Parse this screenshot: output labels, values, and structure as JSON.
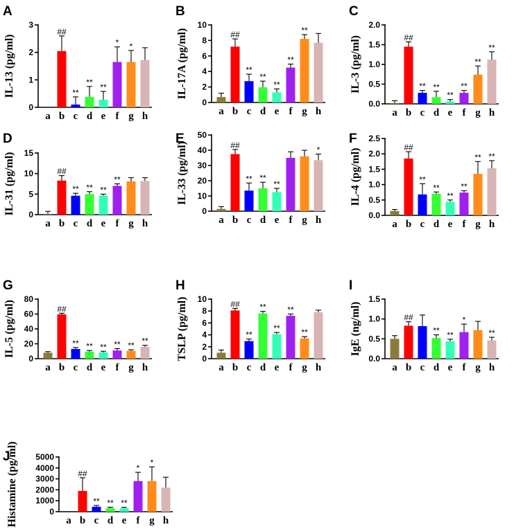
{
  "figure_description": "",
  "categories": [
    "a",
    "b",
    "c",
    "d",
    "e",
    "f",
    "g",
    "h"
  ],
  "colors": [
    "#8B7B3A",
    "#FF0000",
    "#0000FF",
    "#33FF33",
    "#33FFB8",
    "#A020F0",
    "#FF8C1A",
    "#D8B4B4"
  ],
  "chart_data": [
    {
      "id": "A",
      "panel": "A",
      "type": "bar",
      "ylabel": "IL-13 (pg/ml)",
      "ylim": [
        0,
        3
      ],
      "yticks": [
        "0",
        "1",
        "2",
        "3"
      ],
      "tickvals": [
        0,
        1,
        2,
        3
      ],
      "categories": [
        "a",
        "b",
        "c",
        "d",
        "e",
        "f",
        "g",
        "h"
      ],
      "values": [
        0,
        2.05,
        0.1,
        0.38,
        0.28,
        1.65,
        1.65,
        1.72
      ],
      "errors": [
        0,
        0.55,
        0.28,
        0.38,
        0.3,
        0.55,
        0.42,
        0.45
      ],
      "annotations": [
        "",
        "##",
        "**",
        "**",
        "**",
        "*",
        "*",
        ""
      ]
    },
    {
      "id": "B",
      "panel": "B",
      "type": "bar",
      "ylabel": "IL-17A (pg/ml)",
      "ylim": [
        0,
        10
      ],
      "yticks": [
        "0",
        "2",
        "4",
        "6",
        "8",
        "10"
      ],
      "tickvals": [
        0,
        2,
        4,
        6,
        8,
        10
      ],
      "categories": [
        "a",
        "b",
        "c",
        "d",
        "e",
        "f",
        "g",
        "h"
      ],
      "values": [
        0.7,
        7.2,
        2.75,
        1.95,
        1.3,
        4.5,
        8.2,
        7.7
      ],
      "errors": [
        0.5,
        1.0,
        0.9,
        0.8,
        0.45,
        0.45,
        0.55,
        1.2
      ],
      "annotations": [
        "",
        "##",
        "**",
        "**",
        "**",
        "**",
        "**",
        ""
      ]
    },
    {
      "id": "C",
      "panel": "C",
      "type": "bar",
      "ylabel": "IL-3 (pg/ml)",
      "ylim": [
        0,
        2.0
      ],
      "yticks": [
        "0.0",
        "0.5",
        "1.0",
        "1.5",
        "2.0"
      ],
      "tickvals": [
        0,
        0.5,
        1.0,
        1.5,
        2.0
      ],
      "categories": [
        "a",
        "b",
        "c",
        "d",
        "e",
        "f",
        "g",
        "h"
      ],
      "values": [
        0.02,
        1.45,
        0.28,
        0.17,
        0.06,
        0.28,
        0.74,
        1.12
      ],
      "errors": [
        0.06,
        0.12,
        0.06,
        0.15,
        0.05,
        0.06,
        0.22,
        0.2
      ],
      "annotations": [
        "",
        "##",
        "**",
        "**",
        "**",
        "**",
        "**",
        "**"
      ]
    },
    {
      "id": "D",
      "panel": "D",
      "type": "bar",
      "ylabel": "IL-31 (pg/ml)",
      "ylim": [
        0,
        15
      ],
      "yticks": [
        "0",
        "5",
        "10",
        "15"
      ],
      "tickvals": [
        0,
        5,
        10,
        15
      ],
      "categories": [
        "a",
        "b",
        "c",
        "d",
        "e",
        "f",
        "g",
        "h"
      ],
      "values": [
        0.2,
        8.3,
        4.6,
        5.0,
        4.6,
        7.0,
        8.1,
        8.2
      ],
      "errors": [
        0.6,
        1.2,
        0.6,
        0.6,
        0.4,
        0.5,
        0.9,
        0.8
      ],
      "annotations": [
        "",
        "##",
        "**",
        "**",
        "**",
        "**",
        "",
        ""
      ]
    },
    {
      "id": "E",
      "panel": "E",
      "type": "bar",
      "ylabel": "IL-33 (pg/ml)",
      "ylim": [
        0,
        50
      ],
      "yticks": [
        "0",
        "10",
        "20",
        "30",
        "40",
        "50"
      ],
      "tickvals": [
        0,
        10,
        20,
        30,
        40,
        50
      ],
      "categories": [
        "a",
        "b",
        "c",
        "d",
        "e",
        "f",
        "g",
        "h"
      ],
      "values": [
        1.5,
        37.5,
        13.5,
        15.0,
        12.5,
        35.0,
        36.0,
        33.5
      ],
      "errors": [
        1.5,
        3.0,
        5.0,
        4.0,
        2.5,
        4.0,
        4.0,
        4.0
      ],
      "annotations": [
        "",
        "##",
        "**",
        "**",
        "**",
        "",
        "",
        "*"
      ]
    },
    {
      "id": "F",
      "panel": "F",
      "type": "bar",
      "ylabel": "IL-4 (pg/ml)",
      "ylim": [
        0,
        2.5
      ],
      "yticks": [
        "0.0",
        "0.5",
        "1.0",
        "1.5",
        "2.0",
        "2.5"
      ],
      "tickvals": [
        0,
        0.5,
        1.0,
        1.5,
        2.0,
        2.5
      ],
      "categories": [
        "a",
        "b",
        "c",
        "d",
        "e",
        "f",
        "g",
        "h"
      ],
      "values": [
        0.14,
        1.85,
        0.68,
        0.7,
        0.44,
        0.74,
        1.35,
        1.53
      ],
      "errors": [
        0.05,
        0.22,
        0.35,
        0.06,
        0.06,
        0.06,
        0.4,
        0.25
      ],
      "annotations": [
        "",
        "##",
        "**",
        "**",
        "**",
        "**",
        "**",
        "**"
      ]
    },
    {
      "id": "G",
      "panel": "G",
      "type": "bar",
      "ylabel": "IL-5 (pg/ml)",
      "ylim": [
        0,
        80
      ],
      "yticks": [
        "0",
        "20",
        "40",
        "60",
        "80"
      ],
      "tickvals": [
        0,
        20,
        40,
        60,
        80
      ],
      "categories": [
        "a",
        "b",
        "c",
        "d",
        "e",
        "f",
        "g",
        "h"
      ],
      "values": [
        8.0,
        59.5,
        13.0,
        9.5,
        8.5,
        11.0,
        10.5,
        16.0
      ],
      "errors": [
        1.5,
        1.5,
        2.0,
        1.5,
        1.5,
        2.5,
        1.5,
        2.0
      ],
      "annotations": [
        "",
        "##",
        "**",
        "**",
        "**",
        "**",
        "**",
        "**"
      ]
    },
    {
      "id": "H",
      "panel": "H",
      "type": "bar",
      "ylabel": "TSLP (pg/ml)",
      "ylim": [
        0,
        10
      ],
      "yticks": [
        "0",
        "2",
        "4",
        "6",
        "8",
        "10"
      ],
      "tickvals": [
        0,
        2,
        4,
        6,
        8,
        10
      ],
      "categories": [
        "a",
        "b",
        "c",
        "d",
        "e",
        "f",
        "g",
        "h"
      ],
      "values": [
        1.0,
        8.1,
        2.95,
        7.6,
        4.1,
        7.2,
        3.4,
        7.8
      ],
      "errors": [
        0.45,
        0.35,
        0.35,
        0.35,
        0.3,
        0.3,
        0.3,
        0.35
      ],
      "annotations": [
        "",
        "##",
        "**",
        "**",
        "**",
        "**",
        "**",
        ""
      ]
    },
    {
      "id": "I",
      "panel": "I",
      "type": "bar",
      "ylabel": "IgE (ng/ml)",
      "ylim": [
        0,
        1.5
      ],
      "yticks": [
        "0.0",
        "0.5",
        "1.0",
        "1.5"
      ],
      "tickvals": [
        0,
        0.5,
        1.0,
        1.5
      ],
      "categories": [
        "a",
        "b",
        "c",
        "d",
        "e",
        "f",
        "g",
        "h"
      ],
      "values": [
        0.5,
        0.83,
        0.82,
        0.52,
        0.44,
        0.67,
        0.72,
        0.46
      ],
      "errors": [
        0.08,
        0.1,
        0.28,
        0.08,
        0.05,
        0.2,
        0.22,
        0.08
      ],
      "annotations": [
        "",
        "##",
        "",
        "**",
        "**",
        "*",
        "",
        "**"
      ]
    },
    {
      "id": "J",
      "panel": "J",
      "type": "bar",
      "ylabel": "Histamine (pg/ml)",
      "ylim": [
        0,
        5000
      ],
      "yticks": [
        "0",
        "1000",
        "2000",
        "3000",
        "4000",
        "5000"
      ],
      "tickvals": [
        0,
        1000,
        2000,
        3000,
        4000,
        5000
      ],
      "categories": [
        "a",
        "b",
        "c",
        "d",
        "e",
        "f",
        "g",
        "h"
      ],
      "values": [
        0,
        1900,
        450,
        330,
        320,
        2800,
        2800,
        2200
      ],
      "errors": [
        0,
        1200,
        120,
        80,
        80,
        800,
        1300,
        950
      ],
      "annotations": [
        "",
        "##",
        "**",
        "**",
        "**",
        "*",
        "*",
        ""
      ]
    }
  ]
}
